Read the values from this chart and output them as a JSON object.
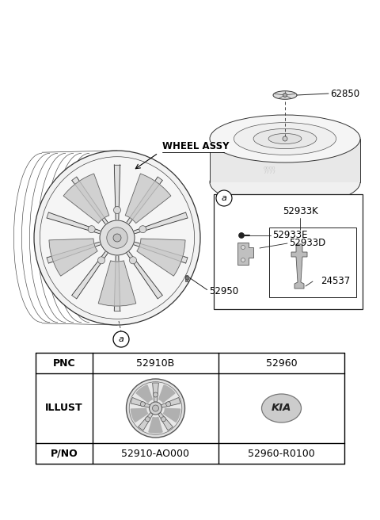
{
  "bg_color": "#ffffff",
  "parts": {
    "wheel_label": "WHEEL ASSY",
    "part_62850": "62850",
    "part_52950": "52950",
    "part_52933K": "52933K",
    "part_52933E": "52933E",
    "part_52933D": "52933D",
    "part_24537": "24537",
    "callout_a": "a"
  },
  "table": {
    "headers": [
      "PNC",
      "52910B",
      "52960"
    ],
    "row1_label": "ILLUST",
    "row2_label": "P/NO",
    "pno1": "52910-AO000",
    "pno2": "52960-R0100"
  }
}
